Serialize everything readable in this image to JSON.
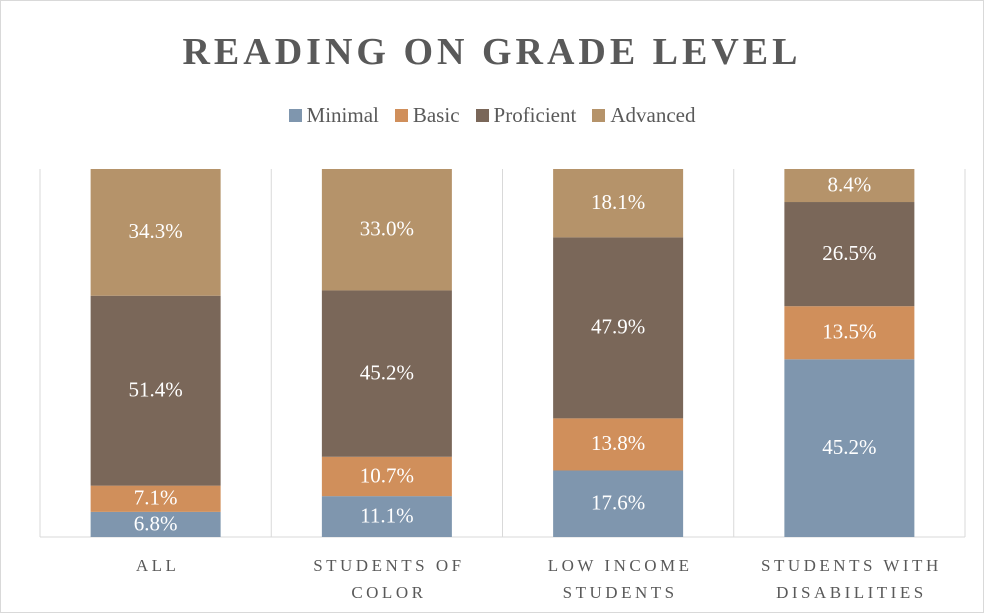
{
  "chart_data": {
    "type": "bar",
    "stack": "percent",
    "title": "READING ON GRADE LEVEL",
    "categories": [
      "ALL",
      "STUDENTS OF COLOR",
      "LOW INCOME STUDENTS",
      "STUDENTS WITH DISABILITIES"
    ],
    "series": [
      {
        "name": "Minimal",
        "color": "#7f96ae",
        "values": [
          6.8,
          11.1,
          17.6,
          45.2
        ],
        "value_labels": [
          "6.8%",
          "11.1%",
          "17.6%",
          "45.2%"
        ]
      },
      {
        "name": "Basic",
        "color": "#d08f5b",
        "values": [
          7.1,
          10.7,
          13.8,
          13.5
        ],
        "value_labels": [
          "7.1%",
          "10.7%",
          "13.8%",
          "13.5%"
        ]
      },
      {
        "name": "Proficient",
        "color": "#7a6759",
        "values": [
          51.4,
          45.2,
          47.9,
          26.5
        ],
        "value_labels": [
          "51.4%",
          "45.2%",
          "47.9%",
          "26.5%"
        ]
      },
      {
        "name": "Advanced",
        "color": "#b5936a",
        "values": [
          34.3,
          33.0,
          18.1,
          8.4
        ],
        "value_labels": [
          "34.3%",
          "33.0%",
          "18.1%",
          "8.4%"
        ]
      }
    ],
    "legend": "top",
    "grid": true
  }
}
